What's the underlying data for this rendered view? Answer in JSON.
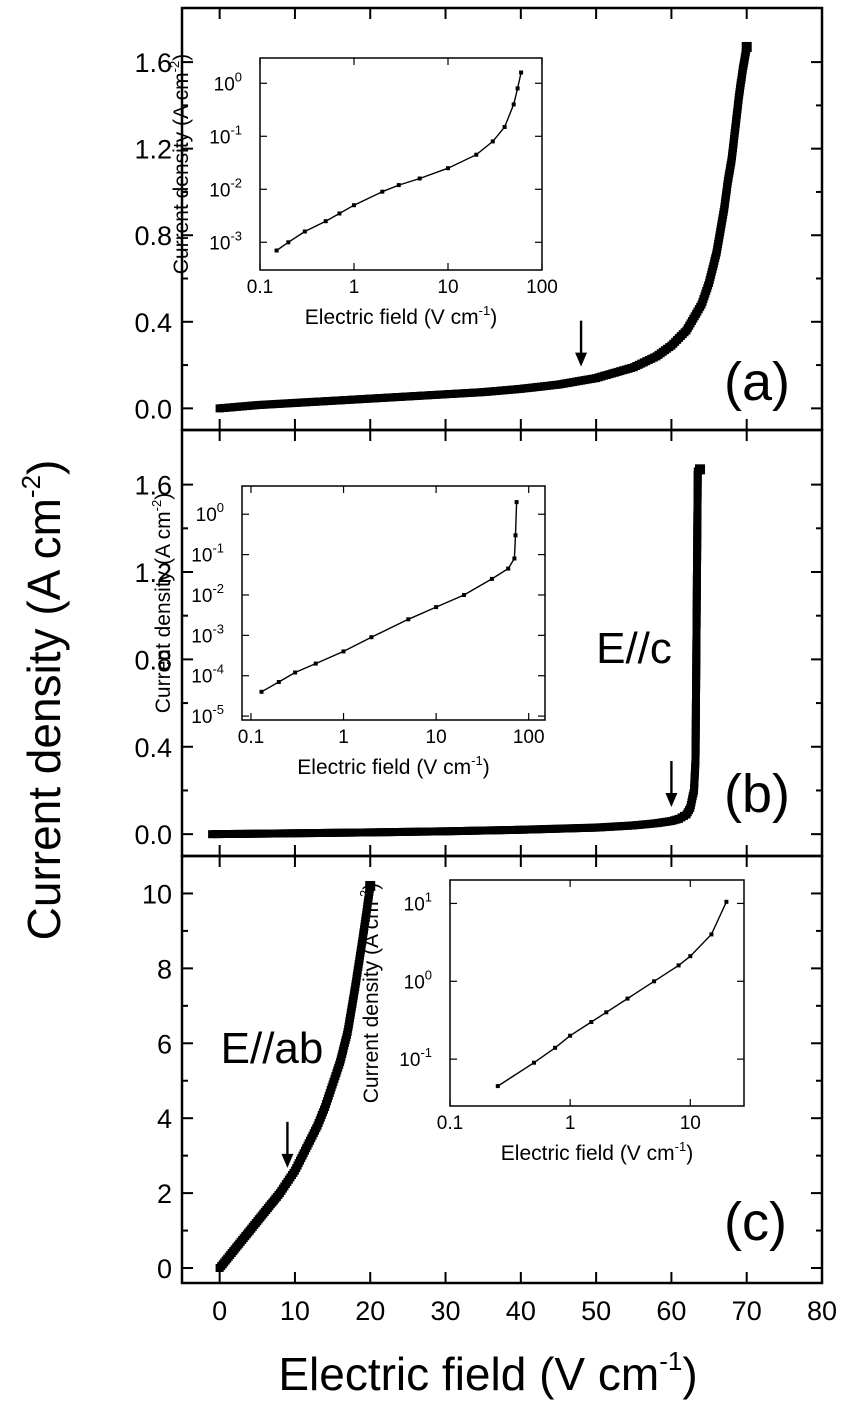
{
  "figure": {
    "xlabel": "Electric field (V cm",
    "xlabel_sup": "-1",
    "xlabel_end": ")",
    "ylabel": "Current density (A cm",
    "ylabel_sup": "-2",
    "ylabel_end": ")",
    "x_ticks": [
      "0",
      "10",
      "20",
      "30",
      "40",
      "50",
      "60",
      "70",
      "80"
    ],
    "inset_xlabel": "Electric field (V cm",
    "inset_xlabel_sup": "-1",
    "inset_xlabel_end": ")",
    "inset_ylabel": "Current density (A cm",
    "inset_ylabel_sup": "-2",
    "inset_ylabel_end": ")",
    "marker_color": "#000000"
  },
  "chart_data": [
    {
      "panel": "a",
      "panel_label": "(a)",
      "annotation": "",
      "type": "scatter",
      "xlim": [
        -5,
        80
      ],
      "ylim": [
        -0.1,
        1.85
      ],
      "y_ticks": [
        "0.0",
        "0.4",
        "0.8",
        "1.2",
        "1.6"
      ],
      "x": [
        0,
        5,
        10,
        15,
        20,
        25,
        30,
        35,
        40,
        45,
        50,
        55,
        58,
        60,
        62,
        64,
        65,
        66,
        67,
        67.5,
        68,
        68.5,
        69,
        69.5,
        70
      ],
      "y": [
        0.0,
        0.015,
        0.025,
        0.035,
        0.045,
        0.055,
        0.065,
        0.075,
        0.09,
        0.11,
        0.14,
        0.19,
        0.24,
        0.29,
        0.36,
        0.48,
        0.58,
        0.72,
        0.92,
        1.05,
        1.15,
        1.3,
        1.45,
        1.57,
        1.67
      ],
      "arrow_x": 48,
      "inset": {
        "type": "line",
        "x_log": true,
        "y_log": true,
        "xlim": [
          0.1,
          100
        ],
        "ylim": [
          0.0003,
          3
        ],
        "x_ticks": [
          "0.1",
          "1",
          "10",
          "100"
        ],
        "y_ticks": [
          {
            "base": "10",
            "exp": "0",
            "value": 1
          },
          {
            "base": "10",
            "exp": "-1",
            "value": 0.1
          },
          {
            "base": "10",
            "exp": "-2",
            "value": 0.01
          },
          {
            "base": "10",
            "exp": "-3",
            "value": 0.001
          }
        ],
        "x": [
          0.15,
          0.2,
          0.3,
          0.5,
          0.7,
          1,
          2,
          3,
          5,
          10,
          20,
          30,
          40,
          50,
          55,
          60
        ],
        "y": [
          0.0007,
          0.001,
          0.0016,
          0.0025,
          0.0035,
          0.005,
          0.009,
          0.012,
          0.016,
          0.025,
          0.045,
          0.08,
          0.15,
          0.4,
          0.8,
          1.6
        ]
      }
    },
    {
      "panel": "b",
      "panel_label": "(b)",
      "annotation": "E//c",
      "type": "scatter",
      "xlim": [
        -5,
        80
      ],
      "ylim": [
        -0.1,
        1.85
      ],
      "y_ticks": [
        "0.0",
        "0.4",
        "0.8",
        "1.2",
        "1.6"
      ],
      "x": [
        -1,
        5,
        10,
        20,
        30,
        40,
        45,
        50,
        55,
        58,
        60,
        61,
        62,
        62.5,
        63,
        63.2,
        63.5,
        63.8
      ],
      "y": [
        0.0,
        0.002,
        0.004,
        0.008,
        0.013,
        0.02,
        0.025,
        0.03,
        0.04,
        0.05,
        0.06,
        0.07,
        0.09,
        0.12,
        0.2,
        0.34,
        1.66,
        1.67
      ],
      "arrow_x": 60,
      "inset": {
        "type": "line",
        "x_log": true,
        "y_log": true,
        "xlim": [
          0.08,
          150
        ],
        "ylim": [
          8e-06,
          5
        ],
        "x_ticks": [
          "0.1",
          "1",
          "10",
          "100"
        ],
        "y_ticks": [
          {
            "base": "10",
            "exp": "0",
            "value": 1
          },
          {
            "base": "10",
            "exp": "-1",
            "value": 0.1
          },
          {
            "base": "10",
            "exp": "-2",
            "value": 0.01
          },
          {
            "base": "10",
            "exp": "-3",
            "value": 0.001
          },
          {
            "base": "10",
            "exp": "-4",
            "value": 0.0001
          },
          {
            "base": "10",
            "exp": "-5",
            "value": 1e-05
          }
        ],
        "x": [
          0.13,
          0.2,
          0.3,
          0.5,
          1,
          2,
          5,
          10,
          20,
          40,
          60,
          70,
          72,
          74
        ],
        "y": [
          4e-05,
          7e-05,
          0.00012,
          0.0002,
          0.0004,
          0.0009,
          0.0025,
          0.005,
          0.01,
          0.025,
          0.045,
          0.08,
          0.3,
          2.0
        ]
      }
    },
    {
      "panel": "c",
      "panel_label": "(c)",
      "annotation": "E//ab",
      "type": "scatter",
      "xlim": [
        -5,
        80
      ],
      "ylim": [
        -0.4,
        11
      ],
      "y_ticks": [
        "0",
        "2",
        "4",
        "6",
        "8",
        "10"
      ],
      "x": [
        0,
        1,
        2,
        3,
        4,
        5,
        6,
        7,
        8,
        9,
        10,
        11,
        12,
        13,
        14,
        15,
        16,
        17,
        18,
        19,
        20
      ],
      "y": [
        0.0,
        0.25,
        0.5,
        0.75,
        1.0,
        1.25,
        1.5,
        1.75,
        2.0,
        2.3,
        2.6,
        3.0,
        3.4,
        3.8,
        4.3,
        4.9,
        5.5,
        6.3,
        7.5,
        8.8,
        10.2
      ],
      "arrow_x": 9,
      "inset": {
        "type": "line",
        "x_log": true,
        "y_log": true,
        "xlim": [
          0.1,
          28
        ],
        "ylim": [
          0.025,
          20
        ],
        "x_ticks": [
          "0.1",
          "1",
          "10"
        ],
        "y_ticks": [
          {
            "base": "10",
            "exp": "1",
            "value": 10
          },
          {
            "base": "10",
            "exp": "0",
            "value": 1
          },
          {
            "base": "10",
            "exp": "-1",
            "value": 0.1
          }
        ],
        "x": [
          0.25,
          0.5,
          0.75,
          1,
          1.5,
          2,
          3,
          5,
          8,
          10,
          15,
          20
        ],
        "y": [
          0.045,
          0.09,
          0.14,
          0.2,
          0.3,
          0.4,
          0.6,
          1.0,
          1.6,
          2.1,
          4.0,
          10.5
        ]
      }
    }
  ]
}
